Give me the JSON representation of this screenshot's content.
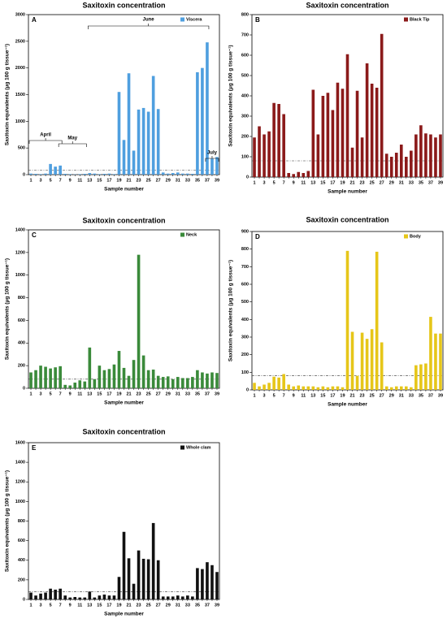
{
  "chart_data": [
    {
      "type": "bar",
      "title": "Saxitoxin concentration",
      "panel_label": "A",
      "x_label": "Sample number",
      "y_label": "Saxitoxin equivalents (μg 100 g tissue⁻¹)",
      "categories": [
        "1",
        null,
        "3",
        null,
        "5",
        null,
        "7",
        null,
        "9",
        null,
        "11",
        null,
        "13",
        null,
        "15",
        null,
        "17",
        null,
        "19",
        null,
        "21",
        null,
        "23",
        null,
        "25",
        null,
        "27",
        null,
        "29",
        null,
        "31",
        null,
        "33",
        null,
        "35",
        null,
        "37",
        null,
        "39"
      ],
      "series": [
        {
          "name": "Viscera",
          "color": "#4f9fdf",
          "values": [
            20,
            15,
            10,
            20,
            200,
            150,
            170,
            15,
            10,
            5,
            10,
            15,
            30,
            20,
            10,
            15,
            20,
            10,
            1550,
            650,
            1900,
            450,
            1220,
            1250,
            1180,
            1850,
            1230,
            40,
            20,
            30,
            40,
            20,
            20,
            15,
            1920,
            2000,
            2480,
            300,
            330
          ]
        }
      ],
      "ylim": [
        0,
        3000
      ],
      "yticks": [
        0,
        500,
        1000,
        1500,
        2000,
        2500,
        3000
      ],
      "reference_line": 80,
      "legend": "top-right",
      "annotations": [
        "April",
        "May",
        "June",
        "July"
      ]
    },
    {
      "type": "bar",
      "title": "Saxitoxin concentration",
      "panel_label": "B",
      "x_label": "Sample number",
      "y_label": "Saxitoxin equivalents (μg 100 g tissue⁻¹)",
      "categories": [
        "1",
        null,
        "3",
        null,
        "5",
        null,
        "7",
        null,
        "9",
        null,
        "11",
        null,
        "13",
        null,
        "15",
        null,
        "17",
        null,
        "19",
        null,
        "21",
        null,
        "23",
        null,
        "25",
        null,
        "27",
        null,
        "29",
        null,
        "31",
        null,
        "33",
        null,
        "35",
        null,
        "37",
        null,
        "39"
      ],
      "series": [
        {
          "name": "Black Tip",
          "color": "#8b1a1a",
          "values": [
            195,
            250,
            210,
            225,
            365,
            360,
            310,
            20,
            15,
            25,
            20,
            30,
            430,
            210,
            400,
            415,
            330,
            465,
            435,
            605,
            145,
            425,
            195,
            560,
            460,
            440,
            705,
            115,
            100,
            120,
            160,
            100,
            130,
            210,
            255,
            215,
            210,
            195,
            210
          ]
        }
      ],
      "ylim": [
        0,
        800
      ],
      "yticks": [
        0,
        100,
        200,
        300,
        400,
        500,
        600,
        700,
        800
      ],
      "reference_line": 80,
      "legend": "top-right"
    },
    {
      "type": "bar",
      "title": "Saxitoxin concentration",
      "panel_label": "C",
      "x_label": "Sample number",
      "y_label": "Saxitoxin equivalents (μg 100 g tissue⁻¹)",
      "categories": [
        "1",
        null,
        "3",
        null,
        "5",
        null,
        "7",
        null,
        "9",
        null,
        "11",
        null,
        "13",
        null,
        "15",
        null,
        "17",
        null,
        "19",
        null,
        "21",
        null,
        "23",
        null,
        "25",
        null,
        "27",
        null,
        "29",
        null,
        "31",
        null,
        "33",
        null,
        "35",
        null,
        "37",
        null,
        "39"
      ],
      "series": [
        {
          "name": "Neck",
          "color": "#3a8a3a",
          "values": [
            140,
            160,
            200,
            190,
            175,
            185,
            195,
            30,
            25,
            50,
            70,
            60,
            360,
            80,
            200,
            160,
            170,
            210,
            330,
            180,
            110,
            250,
            1180,
            290,
            160,
            165,
            110,
            100,
            105,
            80,
            100,
            90,
            90,
            100,
            160,
            140,
            130,
            140,
            135
          ]
        }
      ],
      "ylim": [
        0,
        1400
      ],
      "yticks": [
        0,
        200,
        400,
        600,
        800,
        1000,
        1200,
        1400
      ],
      "reference_line": 80,
      "legend": "top-right"
    },
    {
      "type": "bar",
      "title": "Saxitoxin concentration",
      "panel_label": "D",
      "x_label": "Sample number",
      "y_label": "Saxitoxin equivalents (μg 100 g tissue⁻¹)",
      "categories": [
        "1",
        null,
        "3",
        null,
        "5",
        null,
        "7",
        null,
        "9",
        null,
        "11",
        null,
        "13",
        null,
        "15",
        null,
        "17",
        null,
        "19",
        null,
        "21",
        null,
        "23",
        null,
        "25",
        null,
        "27",
        null,
        "29",
        null,
        "31",
        null,
        "33",
        null,
        "35",
        null,
        "37",
        null,
        "39"
      ],
      "series": [
        {
          "name": "Body",
          "color": "#e6c619",
          "values": [
            40,
            20,
            30,
            40,
            75,
            70,
            90,
            30,
            20,
            25,
            20,
            20,
            20,
            15,
            20,
            15,
            20,
            20,
            15,
            790,
            330,
            80,
            325,
            290,
            345,
            785,
            270,
            20,
            15,
            20,
            20,
            20,
            15,
            140,
            145,
            150,
            415,
            320,
            320
          ]
        }
      ],
      "ylim": [
        0,
        900
      ],
      "yticks": [
        0,
        100,
        200,
        300,
        400,
        500,
        600,
        700,
        800,
        900
      ],
      "reference_line": 80,
      "legend": "top-right"
    },
    {
      "type": "bar",
      "title": "Saxitoxin concentration",
      "panel_label": "E",
      "x_label": "Sample number",
      "y_label": "Saxitoxin equivalents (μg 100 g tissue⁻¹)",
      "categories": [
        "1",
        null,
        "3",
        null,
        "5",
        null,
        "7",
        null,
        "9",
        null,
        "11",
        null,
        "13",
        null,
        "15",
        null,
        "17",
        null,
        "19",
        null,
        "21",
        null,
        "23",
        null,
        "25",
        null,
        "27",
        null,
        "29",
        null,
        "31",
        null,
        "33",
        null,
        "35",
        null,
        "37",
        null,
        "39"
      ],
      "series": [
        {
          "name": "Whole clam",
          "color": "#111111",
          "values": [
            70,
            40,
            60,
            70,
            110,
            100,
            110,
            40,
            20,
            25,
            20,
            20,
            80,
            20,
            40,
            50,
            40,
            40,
            230,
            690,
            420,
            160,
            500,
            415,
            410,
            780,
            400,
            30,
            30,
            30,
            40,
            30,
            40,
            30,
            320,
            310,
            380,
            350,
            280
          ]
        }
      ],
      "ylim": [
        0,
        1600
      ],
      "yticks": [
        0,
        200,
        400,
        600,
        800,
        1000,
        1200,
        1400,
        1600
      ],
      "reference_line": 80,
      "legend": "top-right"
    }
  ]
}
